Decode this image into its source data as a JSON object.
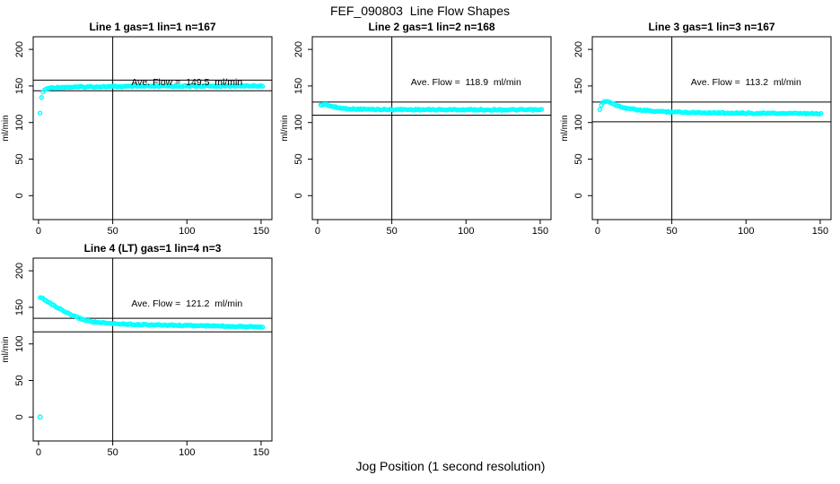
{
  "figure": {
    "title": "FEF_090803  Line Flow Shapes",
    "xlabel": "Jog Position (1 second resolution)",
    "point_color": "#00ffff",
    "axis_color": "#000000",
    "background": "#ffffff"
  },
  "chart_data": [
    {
      "type": "scatter",
      "title": "Line 1 gas=1 lin=1 n=167",
      "annotation": "Ave. Flow =  149.5  ml/min",
      "ave_flow_ml_min": 149.5,
      "ylabel": "ml/min",
      "xticks": [
        0,
        50,
        100,
        150
      ],
      "yticks": [
        0,
        50,
        100,
        150,
        200
      ],
      "xlim": [
        -3.6,
        157.3
      ],
      "ylim": [
        -32.7,
        217.3
      ],
      "vline_x": 50,
      "hlines": [
        158,
        143.5
      ],
      "annotation_pos": [
        100,
        150
      ],
      "sample_step": 1,
      "curve_keypoints": [
        [
          1,
          112
        ],
        [
          2,
          135
        ],
        [
          3,
          141
        ],
        [
          4,
          144.5
        ],
        [
          6,
          146.5
        ],
        [
          9,
          147.5
        ],
        [
          15,
          148.2
        ],
        [
          40,
          149
        ],
        [
          80,
          149.6
        ],
        [
          120,
          150
        ],
        [
          151,
          150.3
        ]
      ],
      "outliers": []
    },
    {
      "type": "scatter",
      "title": "Line 2 gas=1 lin=2 n=168",
      "annotation": "Ave. Flow =  118.9  ml/min",
      "ave_flow_ml_min": 118.9,
      "ylabel": "ml/min",
      "xticks": [
        0,
        50,
        100,
        150
      ],
      "yticks": [
        0,
        50,
        100,
        150,
        200
      ],
      "xlim": [
        -3.6,
        157.3
      ],
      "ylim": [
        -32.7,
        217.3
      ],
      "vline_x": 50,
      "hlines": [
        128,
        110
      ],
      "annotation_pos": [
        100,
        150
      ],
      "sample_step": 1,
      "curve_keypoints": [
        [
          2,
          123.5
        ],
        [
          4,
          125
        ],
        [
          6,
          124.5
        ],
        [
          9,
          122.5
        ],
        [
          13,
          120.5
        ],
        [
          18,
          119.2
        ],
        [
          25,
          118.4
        ],
        [
          40,
          117.9
        ],
        [
          70,
          117.6
        ],
        [
          110,
          117.5
        ],
        [
          151,
          117.3
        ]
      ],
      "outliers": []
    },
    {
      "type": "scatter",
      "title": "Line 3 gas=1 lin=3 n=167",
      "annotation": "Ave. Flow =  113.2  ml/min",
      "ave_flow_ml_min": 113.2,
      "ylabel": "ml/min",
      "xticks": [
        0,
        50,
        100,
        150
      ],
      "yticks": [
        0,
        50,
        100,
        150,
        200
      ],
      "xlim": [
        -3.6,
        157.3
      ],
      "ylim": [
        -32.7,
        217.3
      ],
      "vline_x": 50,
      "hlines": [
        128,
        101
      ],
      "annotation_pos": [
        100,
        150
      ],
      "sample_step": 1,
      "curve_keypoints": [
        [
          1.5,
          117
        ],
        [
          3,
          126
        ],
        [
          5,
          129.5
        ],
        [
          7,
          129
        ],
        [
          10,
          126
        ],
        [
          15,
          122
        ],
        [
          20,
          119.5
        ],
        [
          28,
          117
        ],
        [
          40,
          115.3
        ],
        [
          60,
          114
        ],
        [
          90,
          113
        ],
        [
          120,
          112.5
        ],
        [
          151,
          112
        ]
      ],
      "outliers": []
    },
    {
      "type": "scatter",
      "title": "Line 4 (LT) gas=1 lin=4 n=3",
      "annotation": "Ave. Flow =  121.2  ml/min",
      "ave_flow_ml_min": 121.2,
      "ylabel": "ml/min",
      "xticks": [
        0,
        50,
        100,
        150
      ],
      "yticks": [
        0,
        50,
        100,
        150,
        200
      ],
      "xlim": [
        -3.6,
        157.3
      ],
      "ylim": [
        -32.7,
        217.3
      ],
      "vline_x": 50,
      "hlines": [
        135,
        116.5
      ],
      "annotation_pos": [
        100,
        150
      ],
      "sample_step": 1,
      "curve_keypoints": [
        [
          1,
          163
        ],
        [
          2,
          163
        ],
        [
          3,
          162
        ],
        [
          5,
          159.5
        ],
        [
          8,
          155.5
        ],
        [
          11,
          151.5
        ],
        [
          14,
          148
        ],
        [
          17,
          144.5
        ],
        [
          20,
          141.5
        ],
        [
          24,
          138
        ],
        [
          28,
          134.8
        ],
        [
          32,
          132.3
        ],
        [
          36,
          130.5
        ],
        [
          40,
          129.3
        ],
        [
          46,
          128.2
        ],
        [
          55,
          127.4
        ],
        [
          65,
          126.8
        ],
        [
          80,
          126
        ],
        [
          100,
          125.2
        ],
        [
          120,
          124.5
        ],
        [
          151,
          123.8
        ]
      ],
      "outliers": [
        [
          1,
          0
        ]
      ]
    }
  ]
}
